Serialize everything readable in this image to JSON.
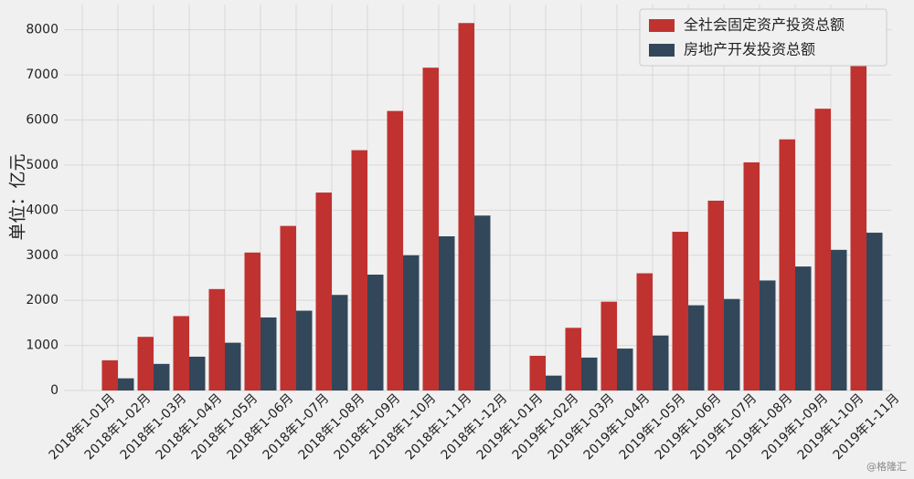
{
  "chart_data": {
    "type": "bar",
    "y_label": "单位：亿元",
    "watermark": "@格隆汇",
    "categories": [
      "2018年1-01月",
      "2018年1-02月",
      "2018年1-03月",
      "2018年1-04月",
      "2018年1-05月",
      "2018年1-06月",
      "2018年1-07月",
      "2018年1-08月",
      "2018年1-09月",
      "2018年1-10月",
      "2018年1-11月",
      "2018年1-12月",
      "2019年1-01月",
      "2019年1-02月",
      "2019年1-03月",
      "2019年1-04月",
      "2019年1-05月",
      "2019年1-06月",
      "2019年1-07月",
      "2019年1-08月",
      "2019年1-09月",
      "2019年1-10月",
      "2019年1-11月"
    ],
    "series": [
      {
        "name": "全社会固定资产投资总额",
        "color": "#c0322f",
        "values": [
          null,
          670,
          1190,
          1650,
          2250,
          3060,
          3650,
          4390,
          5330,
          6200,
          7160,
          8150,
          null,
          770,
          1390,
          1970,
          2600,
          3520,
          4210,
          5060,
          5570,
          6250,
          7200
        ]
      },
      {
        "name": "房地产开发投资总额",
        "color": "#33475a",
        "values": [
          null,
          270,
          590,
          750,
          1060,
          1620,
          1770,
          2120,
          2570,
          3000,
          3420,
          3880,
          null,
          330,
          730,
          930,
          1220,
          1890,
          2030,
          2440,
          2750,
          3120,
          3500
        ]
      }
    ],
    "ylim": [
      0,
      8560
    ],
    "yticks": [
      0,
      1000,
      2000,
      3000,
      4000,
      5000,
      6000,
      7000,
      8000
    ],
    "grid": true,
    "legend": "upper right"
  }
}
